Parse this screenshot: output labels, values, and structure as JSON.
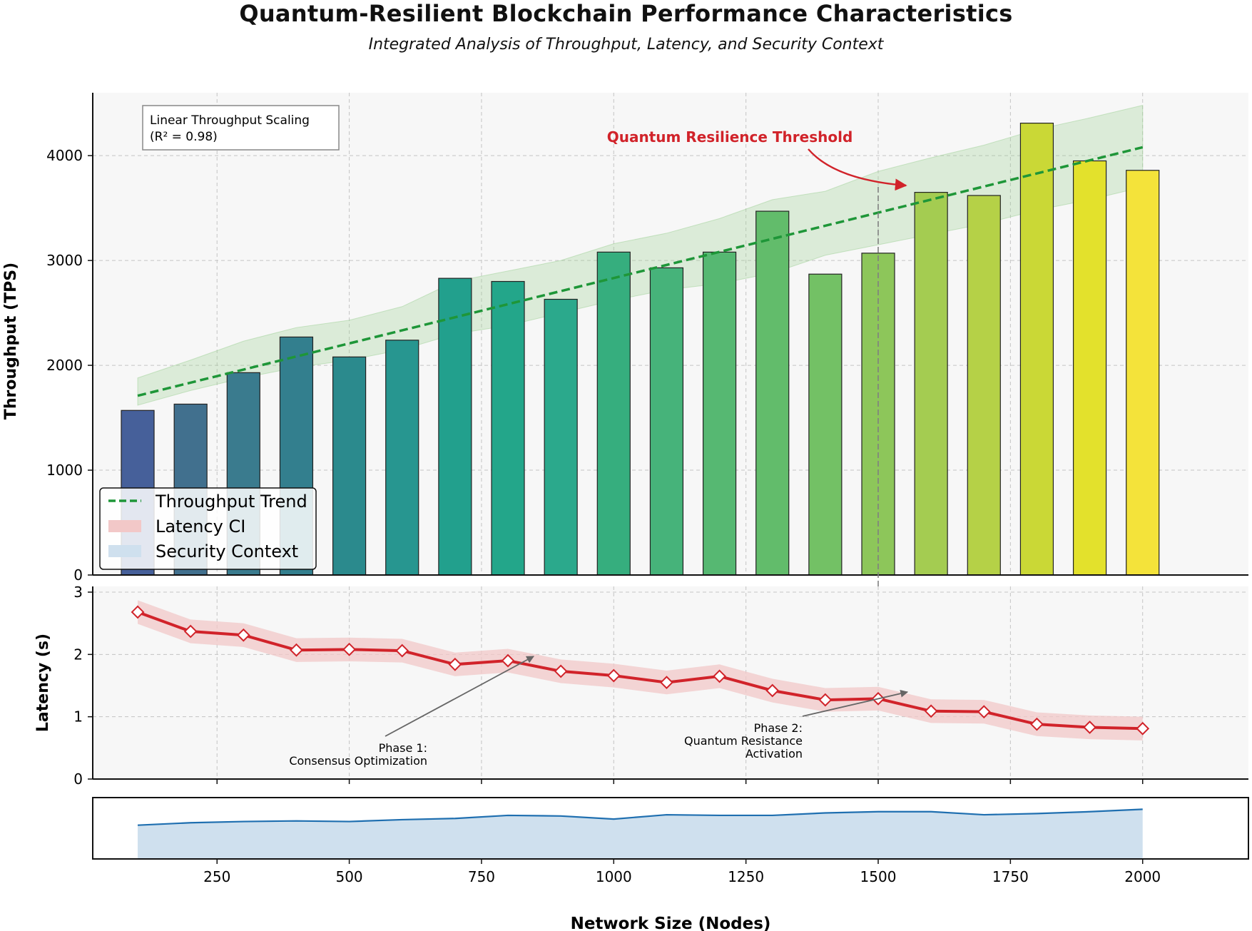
{
  "title": "Quantum-Resilient Blockchain Performance Characteristics",
  "subtitle": "Integrated Analysis of Throughput, Latency, and Security Context",
  "chart_data": {
    "type": "bar",
    "xlabel": "Network Size (Nodes)",
    "xlim": [
      15,
      2200
    ],
    "x_ticks": [
      250,
      500,
      750,
      1000,
      1250,
      1500,
      1750,
      2000
    ],
    "x": [
      100,
      200,
      300,
      400,
      500,
      600,
      700,
      800,
      900,
      1000,
      1100,
      1200,
      1300,
      1400,
      1500,
      1600,
      1700,
      1800,
      1900,
      2000
    ],
    "throughput": {
      "ylabel": "Throughput (TPS)",
      "ylim": [
        0,
        4600
      ],
      "y_ticks": [
        0,
        1000,
        2000,
        3000,
        4000
      ],
      "values": [
        1570,
        1630,
        1930,
        2270,
        2080,
        2240,
        2830,
        2800,
        2630,
        3080,
        2930,
        3080,
        3470,
        2870,
        3070,
        3650,
        3620,
        4310,
        3950,
        3860
      ],
      "bar_colors": [
        "#46609a",
        "#41708e",
        "#3a7b8e",
        "#337f8e",
        "#2b8a8d",
        "#279690",
        "#22a08d",
        "#23a68a",
        "#2ba98c",
        "#36ae7e",
        "#46b37a",
        "#56b872",
        "#62bc6b",
        "#73c165",
        "#8dc65a",
        "#a4cc51",
        "#b5d147",
        "#cad836",
        "#e3e12c",
        "#f4e33a"
      ],
      "trend": {
        "name": "Throughput Trend",
        "start": [
          100,
          1710
        ],
        "end": [
          2000,
          4080
        ]
      },
      "band": {
        "x": [
          100,
          200,
          300,
          400,
          500,
          600,
          700,
          800,
          900,
          1000,
          1100,
          1200,
          1300,
          1400,
          1500,
          1600,
          1700,
          1800,
          1900,
          2000
        ],
        "lower": [
          1620,
          1760,
          1880,
          1980,
          2050,
          2150,
          2300,
          2380,
          2500,
          2620,
          2720,
          2780,
          2880,
          3050,
          3150,
          3250,
          3350,
          3480,
          3580,
          3700
        ],
        "upper": [
          1880,
          2050,
          2230,
          2360,
          2430,
          2560,
          2800,
          2900,
          3000,
          3160,
          3260,
          3400,
          3580,
          3660,
          3850,
          3980,
          4100,
          4250,
          4360,
          4480
        ]
      },
      "annotation_box": {
        "line1": "Linear Throughput Scaling",
        "line2": "(R² = 0.98)"
      },
      "threshold_label": "Quantum Resilience Threshold",
      "threshold_x": 1500
    },
    "latency": {
      "ylabel": "Latency (s)",
      "ylim": [
        0,
        3
      ],
      "y_ticks": [
        0,
        1,
        2,
        3
      ],
      "values": [
        2.68,
        2.37,
        2.31,
        2.07,
        2.08,
        2.06,
        1.84,
        1.9,
        1.73,
        1.66,
        1.55,
        1.65,
        1.42,
        1.27,
        1.29,
        1.09,
        1.08,
        0.88,
        0.83,
        0.81
      ],
      "ci_halfwidth": 0.19,
      "phase1": {
        "line1": "Phase 1:",
        "line2": "Consensus Optimization",
        "target": [
          800,
          2.05
        ]
      },
      "phase2": {
        "line1": "Phase 2:",
        "line2": "Quantum Resistance",
        "line3": "Activation",
        "target": [
          1500,
          1.45
        ]
      }
    },
    "security": {
      "values": [
        0.55,
        0.59,
        0.61,
        0.62,
        0.61,
        0.64,
        0.66,
        0.71,
        0.7,
        0.65,
        0.72,
        0.71,
        0.71,
        0.75,
        0.77,
        0.77,
        0.72,
        0.74,
        0.77,
        0.81
      ],
      "ylim": [
        0,
        1
      ]
    },
    "legend": [
      {
        "label": "Throughput Trend",
        "color": "#1e9638",
        "kind": "dashed-line"
      },
      {
        "label": "Latency CI",
        "color": "#f2c8c8",
        "kind": "patch"
      },
      {
        "label": "Security Context",
        "color": "#cfe0ee",
        "kind": "patch"
      }
    ],
    "legend_loc": "lower left"
  }
}
